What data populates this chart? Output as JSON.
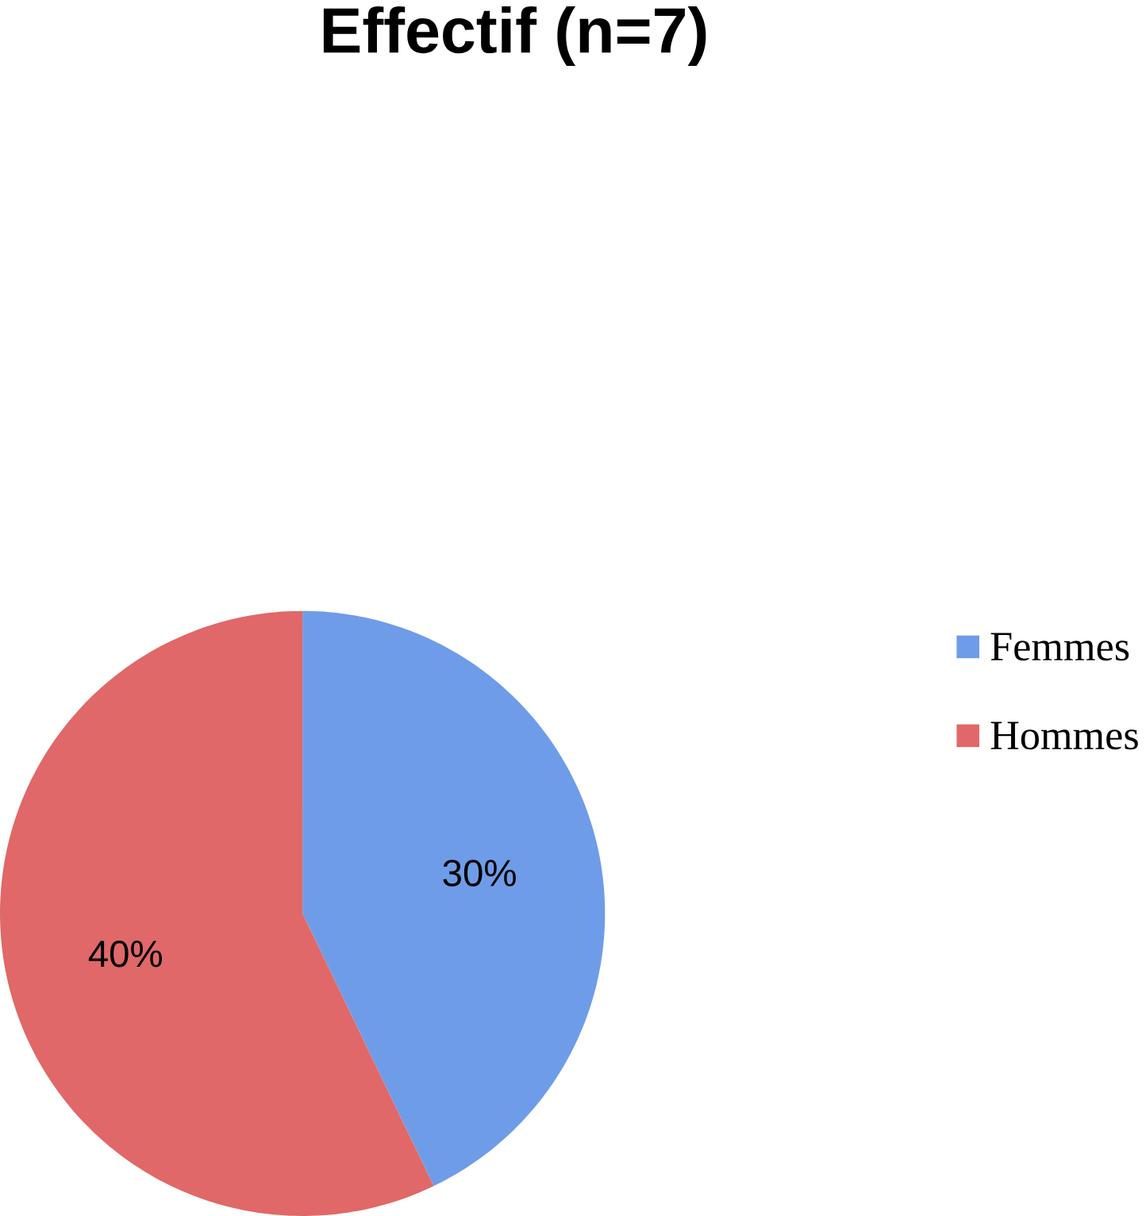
{
  "chart_data": {
    "type": "pie",
    "title": "Effectif (n=7)",
    "categories": [
      "Femmes",
      "Hommes"
    ],
    "values": [
      30,
      40
    ],
    "colors": [
      "#6f9ce8",
      "#e06868"
    ],
    "value_labels": [
      "30%",
      "40%"
    ],
    "legend": "right"
  }
}
